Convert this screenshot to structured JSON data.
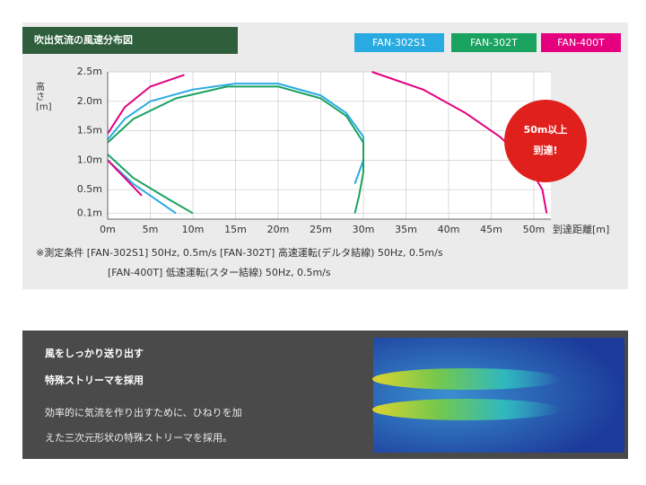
{
  "chart_data": {
    "type": "line",
    "title": "吹出気流の風速分布図",
    "x_label": "到達距離[m]",
    "y_label": "高さ[m]",
    "xlim": [
      0,
      52
    ],
    "ylim": [
      0,
      2.5
    ],
    "xticks": [
      {
        "value": 0,
        "label": "0m"
      },
      {
        "value": 5,
        "label": "5m"
      },
      {
        "value": 10,
        "label": "10m"
      },
      {
        "value": 15,
        "label": "15m"
      },
      {
        "value": 20,
        "label": "20m"
      },
      {
        "value": 25,
        "label": "25m"
      },
      {
        "value": 30,
        "label": "30m"
      },
      {
        "value": 35,
        "label": "35m"
      },
      {
        "value": 40,
        "label": "40m"
      },
      {
        "value": 45,
        "label": "45m"
      },
      {
        "value": 50,
        "label": "50m"
      }
    ],
    "yticks": [
      {
        "value": 0.1,
        "label": "0.1m"
      },
      {
        "value": 0.5,
        "label": "0.5m"
      },
      {
        "value": 1.0,
        "label": "1.0m"
      },
      {
        "value": 1.5,
        "label": "1.5m"
      },
      {
        "value": 2.0,
        "label": "2.0m"
      },
      {
        "value": 2.5,
        "label": "2.5m"
      }
    ],
    "grid": true,
    "series": [
      {
        "name": "FAN-302S1",
        "color": "#29abe2",
        "x": [
          0,
          2,
          5,
          10,
          15,
          20,
          25,
          28,
          30,
          30,
          29,
          null,
          0,
          3,
          6,
          8
        ],
        "values": [
          1.35,
          1.7,
          2.0,
          2.2,
          2.3,
          2.3,
          2.1,
          1.8,
          1.4,
          1.0,
          0.6,
          null,
          1.0,
          0.6,
          0.3,
          0.1
        ]
      },
      {
        "name": "FAN-302T",
        "color": "#1aa260",
        "x": [
          0,
          3,
          8,
          14,
          20,
          25,
          28,
          30,
          30,
          29.5,
          29,
          null,
          0,
          3,
          7,
          10
        ],
        "values": [
          1.3,
          1.7,
          2.05,
          2.25,
          2.25,
          2.05,
          1.75,
          1.3,
          0.8,
          0.4,
          0.1,
          null,
          1.1,
          0.7,
          0.35,
          0.1
        ]
      },
      {
        "name": "FAN-400T",
        "color": "#e4007f",
        "x": [
          0,
          2,
          5,
          9,
          null,
          31,
          37,
          42,
          46,
          49,
          51,
          51.5,
          null,
          0,
          2,
          4
        ],
        "values": [
          1.45,
          1.9,
          2.25,
          2.45,
          null,
          2.5,
          2.2,
          1.8,
          1.4,
          1.0,
          0.5,
          0.1,
          null,
          1.0,
          0.7,
          0.4
        ]
      }
    ],
    "annotations": [
      "50m以上",
      "到達!"
    ],
    "notes": [
      "※測定条件 [FAN-302S1] 50Hz, 0.5m/s [FAN-302T] 高速運転(デルタ結線) 50Hz, 0.5m/s",
      "[FAN-400T] 低速運転(スター結線) 50Hz, 0.5m/s"
    ]
  },
  "feature": {
    "heading": [
      "風をしっかり送り出す",
      "特殊ストリーマを採用"
    ],
    "body": [
      "効率的に気流を作り出すために、ひねりを加",
      "えた三次元形状の特殊ストリーマを採用。"
    ]
  }
}
